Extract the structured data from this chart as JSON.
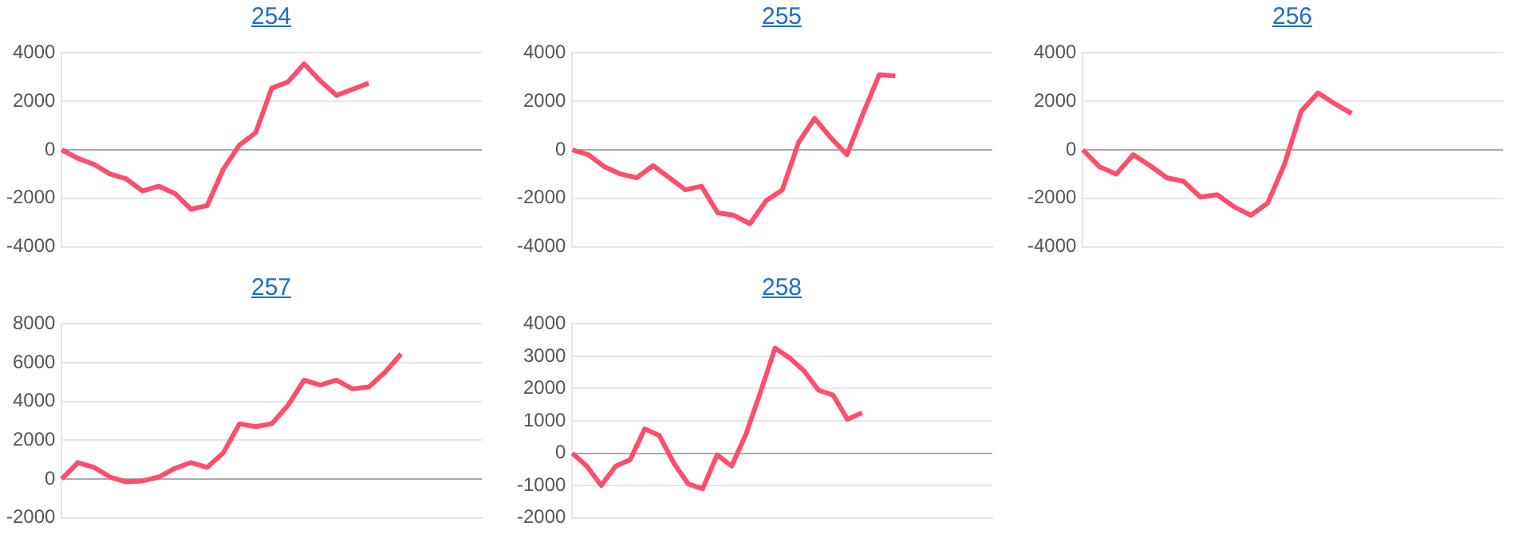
{
  "chart_data": [
    {
      "type": "line",
      "title": "254",
      "categories": [
        null,
        null,
        null,
        null,
        null,
        null,
        null,
        null,
        null,
        null,
        null,
        null,
        null,
        null,
        null,
        null,
        null,
        null,
        null,
        null,
        null,
        null,
        null,
        null,
        null,
        null,
        null
      ],
      "series": [
        {
          "color": "#ff4d6d",
          "values": [
            0,
            -350,
            -600,
            -1000,
            -1200,
            -1700,
            -1500,
            -1800,
            -2450,
            -2300,
            -800,
            200,
            700,
            2550,
            2800,
            3550,
            2850,
            2250,
            2500,
            2750,
            null,
            null,
            null,
            null,
            null,
            null,
            null
          ]
        }
      ],
      "ylim": [
        -4000,
        4000
      ],
      "yticks": [
        -4000,
        -2000,
        0,
        2000,
        4000
      ],
      "grid": "y",
      "tick_labels": "y",
      "marker": "none",
      "line_style": "solid",
      "legend": false
    },
    {
      "type": "line",
      "title": "255",
      "categories": [
        null,
        null,
        null,
        null,
        null,
        null,
        null,
        null,
        null,
        null,
        null,
        null,
        null,
        null,
        null,
        null,
        null,
        null,
        null,
        null,
        null,
        null,
        null,
        null,
        null,
        null,
        null
      ],
      "series": [
        {
          "color": "#ff4d6d",
          "values": [
            0,
            -200,
            -700,
            -1000,
            -1150,
            -650,
            -1150,
            -1650,
            -1500,
            -2600,
            -2700,
            -3050,
            -2100,
            -1650,
            300,
            1300,
            500,
            -200,
            1500,
            3100,
            3050,
            null,
            null,
            null,
            null,
            null,
            null
          ]
        }
      ],
      "ylim": [
        -4000,
        4000
      ],
      "yticks": [
        -4000,
        -2000,
        0,
        2000,
        4000
      ],
      "grid": "y",
      "tick_labels": "y",
      "marker": "none",
      "line_style": "solid",
      "legend": false
    },
    {
      "type": "line",
      "title": "256",
      "categories": [
        null,
        null,
        null,
        null,
        null,
        null,
        null,
        null,
        null,
        null,
        null,
        null,
        null,
        null,
        null,
        null,
        null,
        null,
        null,
        null,
        null,
        null,
        null,
        null,
        null,
        null
      ],
      "series": [
        {
          "color": "#ff4d6d",
          "values": [
            0,
            -700,
            -1000,
            -200,
            -650,
            -1150,
            -1300,
            -1950,
            -1850,
            -2350,
            -2700,
            -2200,
            -600,
            1600,
            2350,
            1900,
            1500,
            null,
            null,
            null,
            null,
            null,
            null,
            null,
            null,
            null
          ]
        }
      ],
      "ylim": [
        -4000,
        4000
      ],
      "yticks": [
        -4000,
        -2000,
        0,
        2000,
        4000
      ],
      "grid": "y",
      "tick_labels": "y",
      "marker": "none",
      "line_style": "solid",
      "legend": false
    },
    {
      "type": "line",
      "title": "257",
      "categories": [
        null,
        null,
        null,
        null,
        null,
        null,
        null,
        null,
        null,
        null,
        null,
        null,
        null,
        null,
        null,
        null,
        null,
        null,
        null,
        null,
        null,
        null,
        null,
        null,
        null,
        null,
        null
      ],
      "series": [
        {
          "color": "#ff4d6d",
          "values": [
            0,
            850,
            600,
            100,
            -150,
            -100,
            100,
            550,
            850,
            600,
            1350,
            2850,
            2700,
            2850,
            3800,
            5100,
            4850,
            5100,
            4650,
            4750,
            5500,
            6450,
            null,
            null,
            null,
            null,
            null
          ]
        }
      ],
      "ylim": [
        -2000,
        8000
      ],
      "yticks": [
        -2000,
        0,
        2000,
        4000,
        6000,
        8000
      ],
      "grid": "y",
      "tick_labels": "y",
      "marker": "none",
      "line_style": "solid",
      "legend": false
    },
    {
      "type": "line",
      "title": "258",
      "categories": [
        null,
        null,
        null,
        null,
        null,
        null,
        null,
        null,
        null,
        null,
        null,
        null,
        null,
        null,
        null,
        null,
        null,
        null,
        null,
        null,
        null,
        null,
        null,
        null,
        null,
        null,
        null,
        null,
        null,
        null
      ],
      "series": [
        {
          "color": "#ff4d6d",
          "values": [
            0,
            -400,
            -1000,
            -400,
            -200,
            750,
            550,
            -300,
            -950,
            -1100,
            -50,
            -400,
            600,
            1900,
            3250,
            2950,
            2550,
            1950,
            1800,
            1050,
            1250,
            null,
            null,
            null,
            null,
            null,
            null,
            null,
            null,
            null
          ]
        }
      ],
      "ylim": [
        -2000,
        4000
      ],
      "yticks": [
        -2000,
        -1000,
        0,
        1000,
        2000,
        3000,
        4000
      ],
      "grid": "y",
      "tick_labels": "y",
      "marker": "none",
      "line_style": "solid",
      "legend": false
    }
  ]
}
